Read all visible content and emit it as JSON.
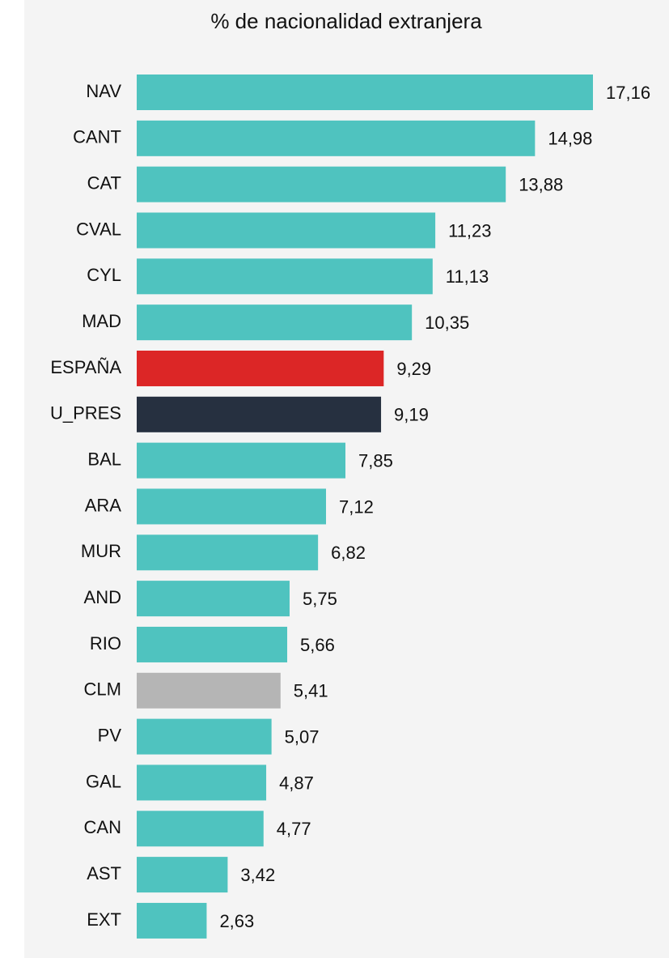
{
  "chart_data": {
    "type": "barh",
    "title": "% de nacionalidad extranjera",
    "categories": [
      "NAV",
      "CANT",
      "CAT",
      "CVAL",
      "CYL",
      "MAD",
      "ESPAÑA",
      "U_PRES",
      "BAL",
      "ARA",
      "MUR",
      "AND",
      "RIO",
      "CLM",
      "PV",
      "GAL",
      "CAN",
      "AST",
      "EXT"
    ],
    "values": [
      17.16,
      14.98,
      13.88,
      11.23,
      11.13,
      10.35,
      9.29,
      9.19,
      7.85,
      7.12,
      6.82,
      5.75,
      5.66,
      5.41,
      5.07,
      4.87,
      4.77,
      3.42,
      2.63
    ],
    "value_labels": [
      "17,16",
      "14,98",
      "13,88",
      "11,23",
      "11,13",
      "10,35",
      "9,29",
      "9,19",
      "7,85",
      "7,12",
      "6,82",
      "5,75",
      "5,66",
      "5,41",
      "5,07",
      "4,87",
      "4,77",
      "3,42",
      "2,63"
    ],
    "colors": [
      "#4fc3bf",
      "#4fc3bf",
      "#4fc3bf",
      "#4fc3bf",
      "#4fc3bf",
      "#4fc3bf",
      "#dc2626",
      "#263040",
      "#4fc3bf",
      "#4fc3bf",
      "#4fc3bf",
      "#4fc3bf",
      "#4fc3bf",
      "#b5b5b5",
      "#4fc3bf",
      "#4fc3bf",
      "#4fc3bf",
      "#4fc3bf",
      "#4fc3bf"
    ]
  }
}
